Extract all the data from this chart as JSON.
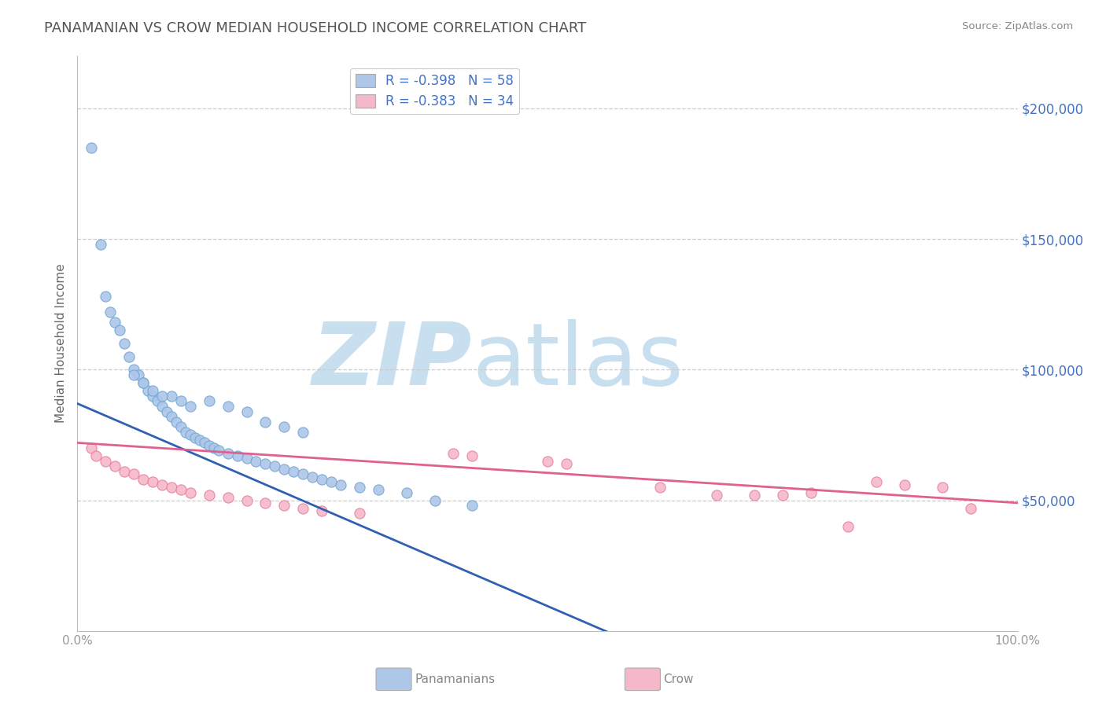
{
  "title": "PANAMANIAN VS CROW MEDIAN HOUSEHOLD INCOME CORRELATION CHART",
  "source": "Source: ZipAtlas.com",
  "ylabel": "Median Household Income",
  "xlim": [
    0.0,
    100.0
  ],
  "ylim": [
    0,
    220000
  ],
  "yticks": [
    50000,
    100000,
    150000,
    200000
  ],
  "ytick_labels": [
    "$50,000",
    "$100,000",
    "$150,000",
    "$200,000"
  ],
  "bg_color": "#ffffff",
  "grid_color": "#cccccc",
  "title_color": "#555555",
  "ylabel_color": "#666666",
  "tick_color": "#4472C4",
  "watermark_zip": "ZIP",
  "watermark_atlas": "atlas",
  "watermark_color_zip": "#c8dff0",
  "watermark_color_atlas": "#c8dff0",
  "legend_label1": "R = -0.398   N = 58",
  "legend_label2": "R = -0.383   N = 34",
  "legend_color1": "#aec6e8",
  "legend_color2": "#f4b8c8",
  "scatter1_color": "#aec6e8",
  "scatter1_edge": "#6fa8d4",
  "scatter2_color": "#f4b8c8",
  "scatter2_edge": "#e87fa0",
  "line1_color": "#3060b0",
  "line2_color": "#e06090",
  "bottom_legend_color": "#888888",
  "pan_x": [
    1.5,
    2.5,
    3.0,
    3.5,
    4.0,
    4.5,
    5.0,
    5.5,
    6.0,
    6.5,
    7.0,
    7.5,
    8.0,
    8.5,
    9.0,
    9.5,
    10.0,
    10.5,
    11.0,
    11.5,
    12.0,
    12.5,
    13.0,
    13.5,
    14.0,
    14.5,
    15.0,
    16.0,
    17.0,
    18.0,
    19.0,
    20.0,
    21.0,
    22.0,
    23.0,
    24.0,
    25.0,
    26.0,
    27.0,
    28.0,
    30.0,
    32.0,
    35.0,
    38.0,
    42.0,
    20.0,
    22.0,
    24.0,
    14.0,
    16.0,
    18.0,
    10.0,
    11.0,
    12.0,
    8.0,
    9.0,
    7.0,
    6.0
  ],
  "pan_y": [
    185000,
    148000,
    128000,
    122000,
    118000,
    115000,
    110000,
    105000,
    100000,
    98000,
    95000,
    92000,
    90000,
    88000,
    86000,
    84000,
    82000,
    80000,
    78000,
    76000,
    75000,
    74000,
    73000,
    72000,
    71000,
    70000,
    69000,
    68000,
    67000,
    66000,
    65000,
    64000,
    63000,
    62000,
    61000,
    60000,
    59000,
    58000,
    57000,
    56000,
    55000,
    54000,
    53000,
    50000,
    48000,
    80000,
    78000,
    76000,
    88000,
    86000,
    84000,
    90000,
    88000,
    86000,
    92000,
    90000,
    95000,
    98000
  ],
  "crow_x": [
    1.5,
    2.0,
    3.0,
    4.0,
    5.0,
    6.0,
    7.0,
    8.0,
    9.0,
    10.0,
    11.0,
    12.0,
    14.0,
    16.0,
    18.0,
    20.0,
    22.0,
    24.0,
    26.0,
    30.0,
    40.0,
    42.0,
    50.0,
    52.0,
    62.0,
    72.0,
    75.0,
    82.0,
    85.0,
    88.0,
    92.0,
    95.0,
    68.0,
    78.0
  ],
  "crow_y": [
    70000,
    67000,
    65000,
    63000,
    61000,
    60000,
    58000,
    57000,
    56000,
    55000,
    54000,
    53000,
    52000,
    51000,
    50000,
    49000,
    48000,
    47000,
    46000,
    45000,
    68000,
    67000,
    65000,
    64000,
    55000,
    52000,
    52000,
    40000,
    57000,
    56000,
    55000,
    47000,
    52000,
    53000
  ]
}
